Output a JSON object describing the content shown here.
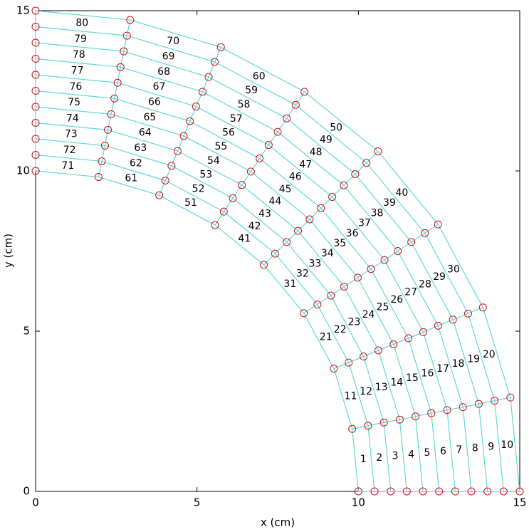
{
  "chart_data": {
    "type": "mesh",
    "xlabel": "x (cm)",
    "ylabel": "y (cm)",
    "xlim": [
      0,
      15
    ],
    "ylim": [
      0,
      15
    ],
    "xticks": [
      0,
      5,
      10,
      15
    ],
    "yticks": [
      0,
      5,
      10,
      15
    ],
    "mesh_color": "#5fd8d8",
    "node_color": "#d01010",
    "nodes": [
      {
        "x": [
          10,
          10.5,
          11,
          11.5,
          12,
          12.5,
          13,
          13.5,
          14,
          14.5,
          15
        ],
        "y": [
          0,
          0,
          0,
          0,
          0,
          0,
          0,
          0,
          0,
          0,
          0
        ]
      },
      {
        "x": [
          9.81,
          10.3,
          10.79,
          11.28,
          11.77,
          12.26,
          12.75,
          13.24,
          13.73,
          14.22,
          14.71
        ],
        "y": [
          1.95,
          2.05,
          2.15,
          2.24,
          2.34,
          2.44,
          2.54,
          2.63,
          2.73,
          2.83,
          2.93
        ]
      },
      {
        "x": [
          9.24,
          9.7,
          10.16,
          10.62,
          11.09,
          11.55,
          12.01,
          12.47,
          12.93,
          13.4,
          13.86
        ],
        "y": [
          3.83,
          4.02,
          4.21,
          4.4,
          4.59,
          4.78,
          4.97,
          5.17,
          5.36,
          5.55,
          5.74
        ]
      },
      {
        "x": [
          8.31,
          8.73,
          9.15,
          9.56,
          9.98,
          10.39,
          10.81,
          11.22,
          11.64,
          12.06,
          12.47
        ],
        "y": [
          5.56,
          5.83,
          6.11,
          6.39,
          6.67,
          6.94,
          7.22,
          7.5,
          7.78,
          8.06,
          8.33
        ]
      },
      {
        "x": [
          7.07,
          7.42,
          7.78,
          8.13,
          8.49,
          8.84,
          9.19,
          9.55,
          9.9,
          10.25,
          10.61
        ],
        "y": [
          7.07,
          7.42,
          7.78,
          8.13,
          8.49,
          8.84,
          9.19,
          9.55,
          9.9,
          10.25,
          10.61
        ]
      },
      {
        "x": [
          5.56,
          5.83,
          6.11,
          6.39,
          6.67,
          6.94,
          7.22,
          7.5,
          7.78,
          8.06,
          8.33
        ],
        "y": [
          8.31,
          8.73,
          9.15,
          9.56,
          9.98,
          10.39,
          10.81,
          11.22,
          11.64,
          12.06,
          12.47
        ]
      },
      {
        "x": [
          3.83,
          4.02,
          4.21,
          4.4,
          4.59,
          4.78,
          4.97,
          5.17,
          5.36,
          5.55,
          5.74
        ],
        "y": [
          9.24,
          9.7,
          10.16,
          10.62,
          11.09,
          11.55,
          12.01,
          12.47,
          12.93,
          13.4,
          13.86
        ]
      },
      {
        "x": [
          1.95,
          2.05,
          2.15,
          2.24,
          2.34,
          2.44,
          2.54,
          2.63,
          2.73,
          2.83,
          2.93
        ],
        "y": [
          9.81,
          10.3,
          10.79,
          11.28,
          11.77,
          12.26,
          12.75,
          13.24,
          13.73,
          14.22,
          14.71
        ]
      },
      {
        "x": [
          0,
          0,
          0,
          0,
          0,
          0,
          0,
          0,
          0,
          0,
          0
        ],
        "y": [
          10,
          10.5,
          11,
          11.5,
          12,
          12.5,
          13,
          13.5,
          14,
          14.5,
          15
        ]
      }
    ],
    "elements": [
      1,
      2,
      3,
      4,
      5,
      6,
      7,
      8,
      9,
      10,
      11,
      12,
      13,
      14,
      15,
      16,
      17,
      18,
      19,
      20,
      21,
      22,
      23,
      24,
      25,
      26,
      27,
      28,
      29,
      30,
      31,
      32,
      33,
      34,
      35,
      36,
      37,
      38,
      39,
      40,
      41,
      42,
      43,
      44,
      45,
      46,
      47,
      48,
      49,
      50,
      51,
      52,
      53,
      54,
      55,
      56,
      57,
      58,
      59,
      60,
      61,
      62,
      63,
      64,
      65,
      66,
      67,
      68,
      69,
      70,
      71,
      72,
      73,
      74,
      75,
      76,
      77,
      78,
      79,
      80
    ]
  }
}
